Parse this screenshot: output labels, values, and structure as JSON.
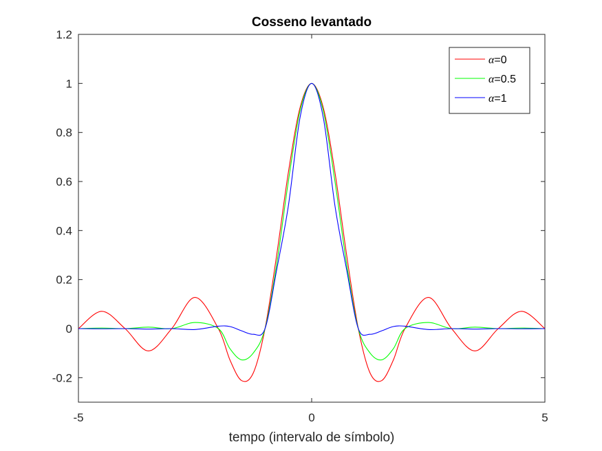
{
  "chart_data": {
    "type": "line",
    "title": "Cosseno levantado",
    "xlabel": "tempo (intervalo de símbolo)",
    "ylabel": "",
    "xlim": [
      -5,
      5
    ],
    "ylim": [
      -0.3,
      1.2
    ],
    "xticks": [
      -5,
      0,
      5
    ],
    "xtick_labels": [
      "-5",
      "0",
      "5"
    ],
    "yticks": [
      -0.2,
      0,
      0.2,
      0.4,
      0.6,
      0.8,
      1,
      1.2
    ],
    "ytick_labels": [
      "-0.2",
      "0",
      "0.2",
      "0.4",
      "0.6",
      "0.8",
      "1",
      "1.2"
    ],
    "grid": true,
    "legend_position": "top-right",
    "x": [
      -5,
      -4.5,
      -4,
      -3.5,
      -3,
      -2.5,
      -2,
      -1.75,
      -1.5,
      -1.25,
      -1,
      -0.75,
      -0.5,
      -0.25,
      0,
      0.25,
      0.5,
      0.75,
      1,
      1.25,
      1.5,
      1.75,
      2,
      2.5,
      3,
      3.5,
      4,
      4.5,
      5
    ],
    "series": [
      {
        "symbol": "α",
        "name_suffix": "=0",
        "color": "#ff0000",
        "values": [
          0,
          0.0707,
          0,
          -0.0909,
          0,
          0.1273,
          0,
          -0.1286,
          -0.2122,
          -0.1801,
          0,
          0.3001,
          0.6366,
          0.9003,
          1,
          0.9003,
          0.6366,
          0.3001,
          0,
          -0.1801,
          -0.2122,
          -0.1286,
          0,
          0.1273,
          0,
          -0.0909,
          0,
          0.0707,
          0
        ]
      },
      {
        "symbol": "α",
        "name_suffix": "=0.5",
        "color": "#00ff00",
        "values": [
          0,
          0.0024,
          0,
          0.006,
          0,
          0.025,
          0,
          -0.0823,
          -0.1273,
          -0.099,
          0,
          0.2626,
          0.6002,
          0.8879,
          1,
          0.8879,
          0.6002,
          0.2626,
          0,
          -0.099,
          -0.1273,
          -0.0823,
          0,
          0.025,
          0,
          0.006,
          0,
          0.0024,
          0
        ]
      },
      {
        "symbol": "α",
        "name_suffix": "=1",
        "color": "#0000ff",
        "values": [
          0,
          -0.0007,
          0,
          -0.002,
          0,
          -0.0037,
          0.01,
          0.0084,
          -0.009,
          -0.023,
          0,
          0.24,
          0.5,
          0.86,
          1,
          0.86,
          0.5,
          0.24,
          0,
          -0.023,
          -0.009,
          0.0084,
          0.01,
          -0.0037,
          0,
          -0.002,
          0,
          -0.0007,
          0
        ]
      }
    ]
  }
}
